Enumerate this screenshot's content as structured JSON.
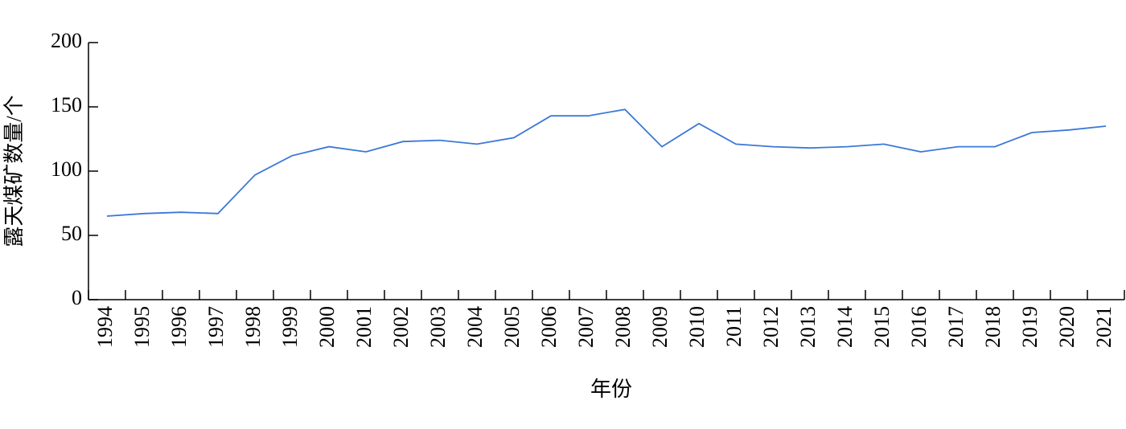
{
  "chart_data": {
    "type": "line",
    "x_label": "年份",
    "y_label": "露天煤矿数量/个",
    "categories": [
      "1994",
      "1995",
      "1996",
      "1997",
      "1998",
      "1999",
      "2000",
      "2001",
      "2002",
      "2003",
      "2004",
      "2005",
      "2006",
      "2007",
      "2008",
      "2009",
      "2010",
      "2011",
      "2012",
      "2013",
      "2014",
      "2015",
      "2016",
      "2017",
      "2018",
      "2019",
      "2020",
      "2021"
    ],
    "values": [
      65,
      67,
      68,
      67,
      97,
      112,
      119,
      115,
      123,
      124,
      121,
      126,
      143,
      143,
      148,
      119,
      137,
      121,
      119,
      118,
      119,
      121,
      115,
      119,
      119,
      130,
      132,
      135
    ],
    "color": "#3b78d8",
    "ylim": [
      0,
      200
    ],
    "yticks": [
      0,
      50,
      100,
      150,
      200
    ],
    "grid": false
  }
}
